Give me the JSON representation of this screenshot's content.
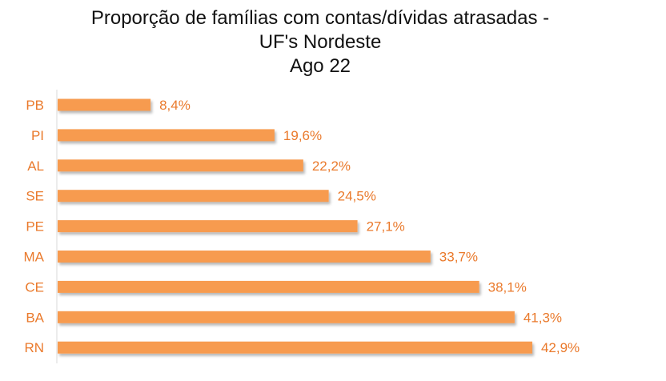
{
  "chart_data": {
    "type": "bar",
    "orientation": "horizontal",
    "title": [
      "Proporção de famílias com contas/dívidas atrasadas -",
      "UF's Nordeste",
      "Ago 22"
    ],
    "categories": [
      "PB",
      "PI",
      "AL",
      "SE",
      "PE",
      "MA",
      "CE",
      "BA",
      "RN"
    ],
    "values": [
      8.4,
      19.6,
      22.2,
      24.5,
      27.1,
      33.7,
      38.1,
      41.3,
      42.9
    ],
    "value_labels": [
      "8,4%",
      "19,6%",
      "22,2%",
      "24,5%",
      "27,1%",
      "33,7%",
      "38,1%",
      "41,3%",
      "42,9%"
    ],
    "xlabel": "",
    "ylabel": "",
    "xlim": [
      0,
      45
    ],
    "grid": false,
    "legend": "none",
    "colors": {
      "bar": "#f79b4f",
      "label": "#ea7a2c",
      "axis": "#d9d9d9",
      "title": "#111111"
    }
  }
}
